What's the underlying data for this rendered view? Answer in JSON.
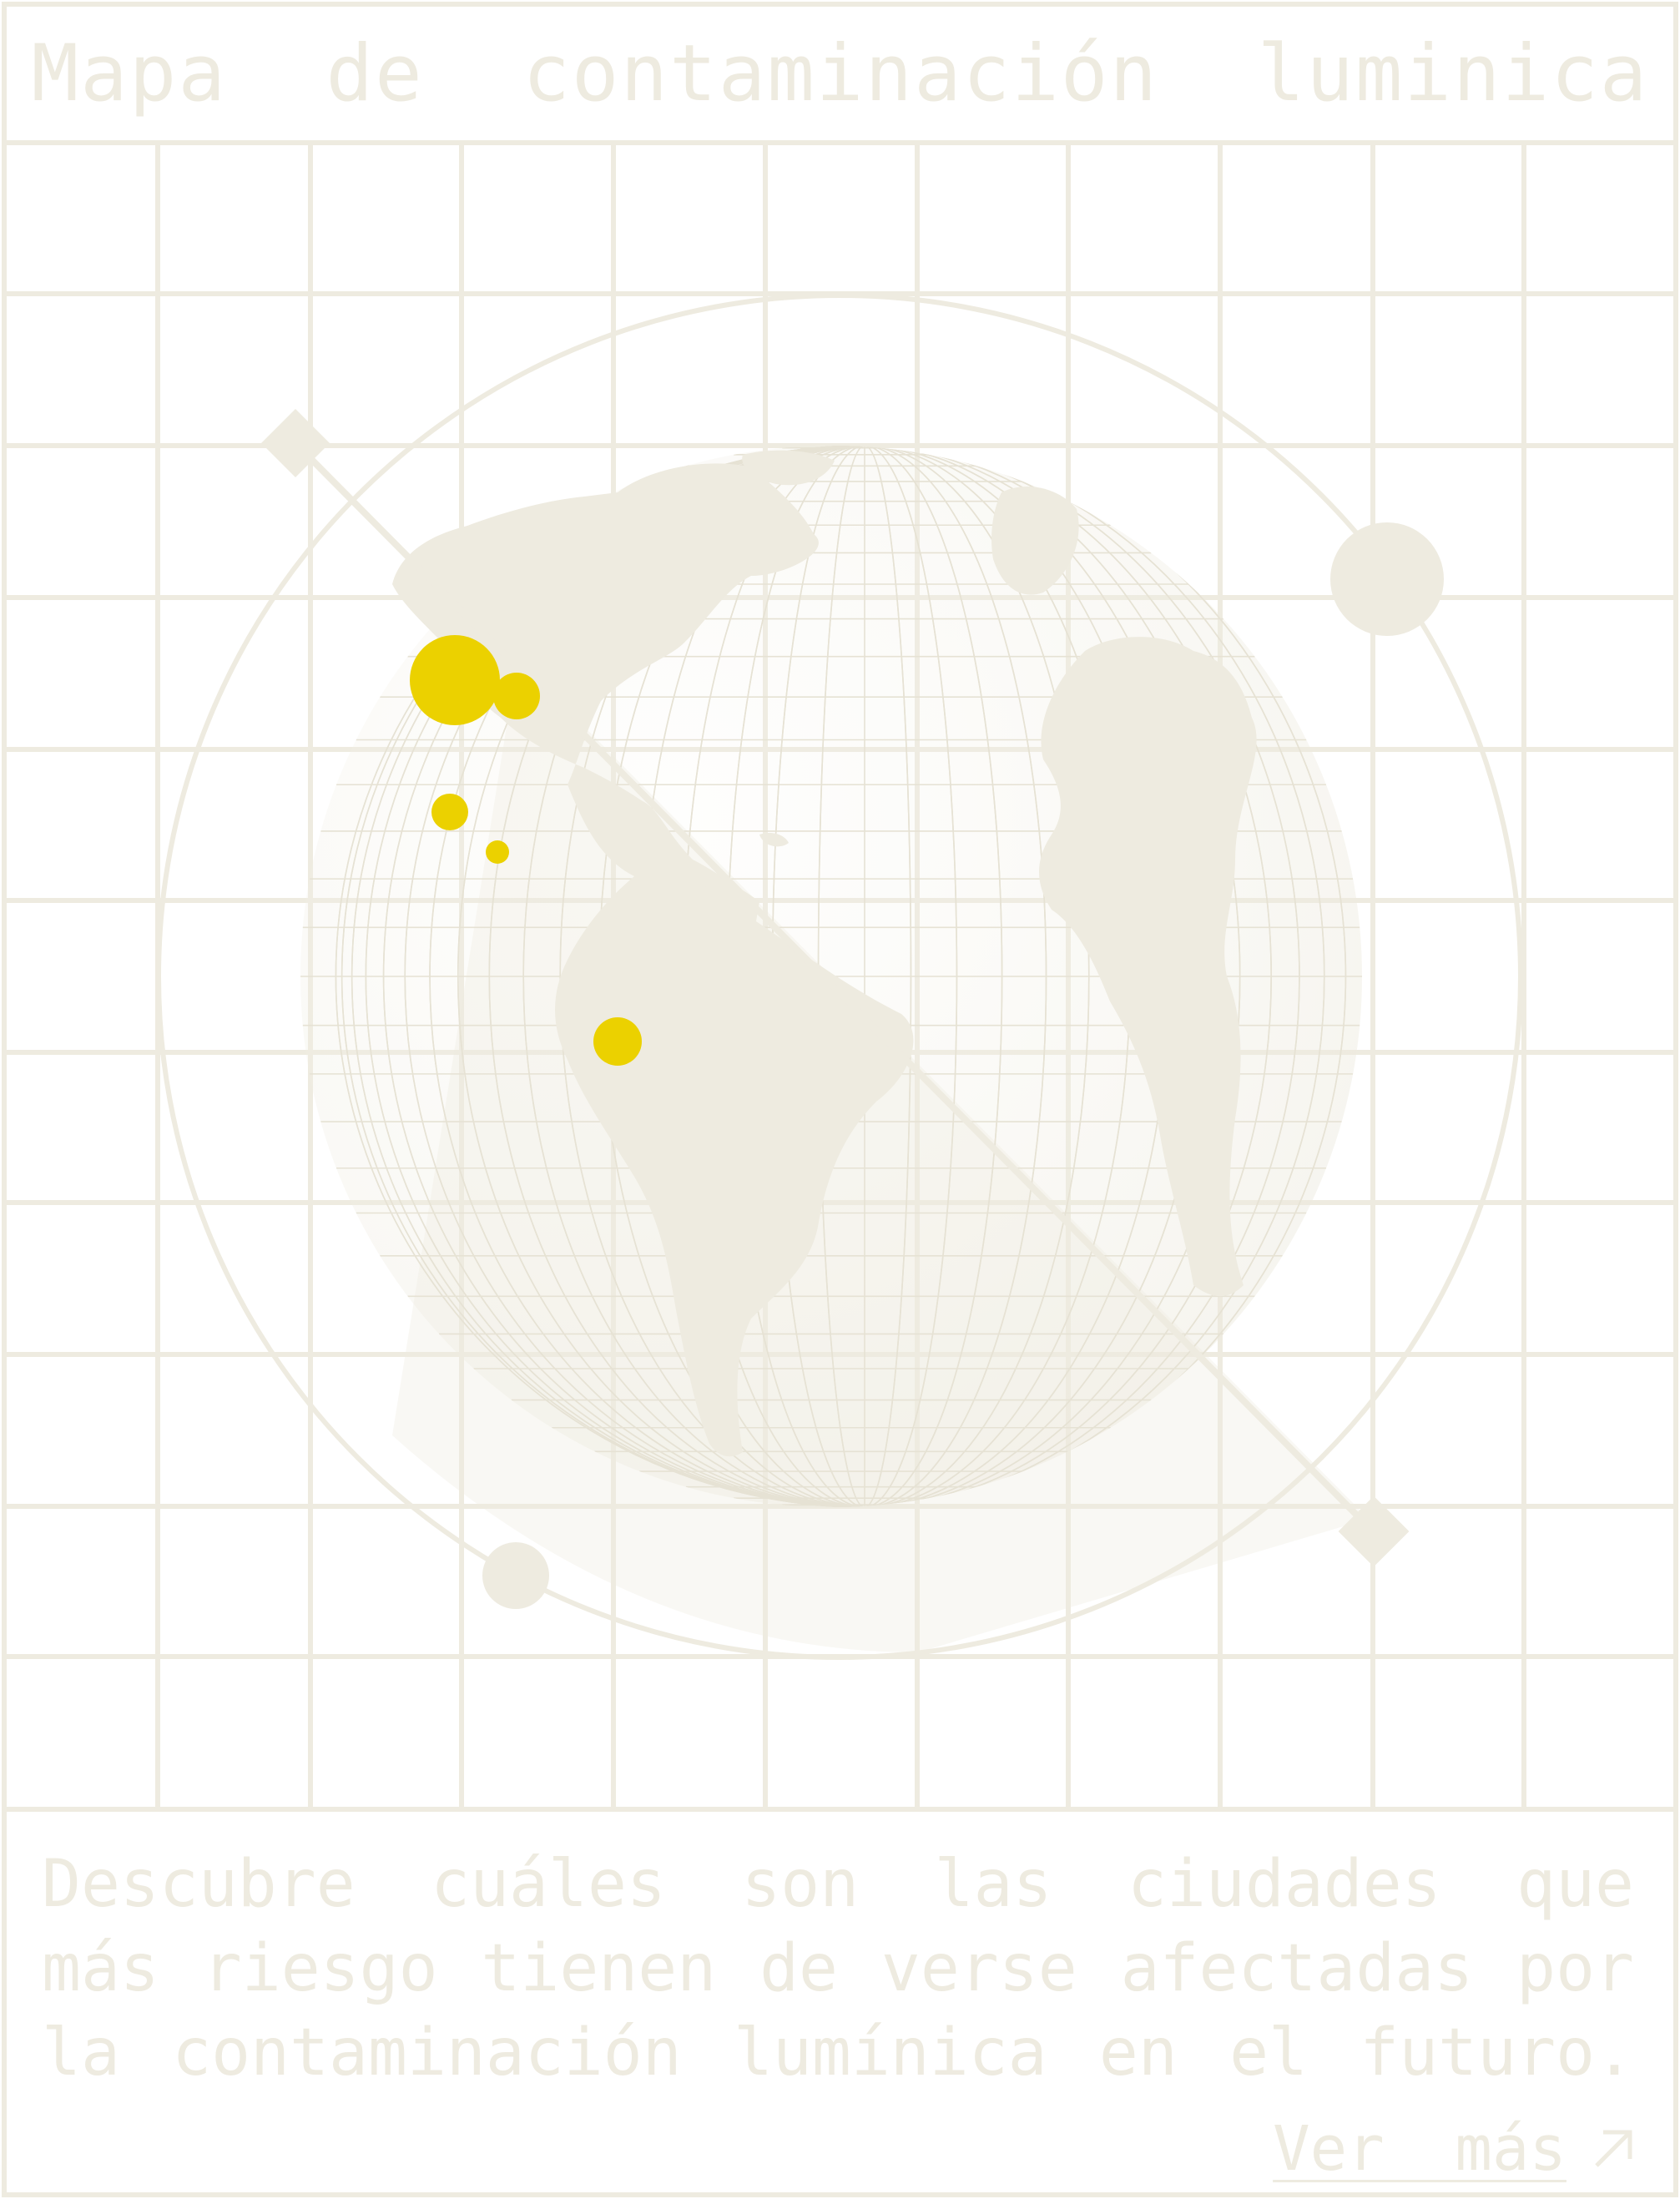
{
  "header": {
    "title": "Mapa de contaminación luminica"
  },
  "description": {
    "lines": [
      "Descubre cuáles son las ciudades que",
      "más riesgo tienen de verse afectadas por",
      "la contaminación lumínica en el futuro."
    ]
  },
  "link": {
    "label": "Ver más",
    "icon": "arrow-up-right-icon"
  },
  "colors": {
    "line": "#eeebe0",
    "land": "#eeebe0",
    "marker": "#ebd100",
    "background": "#ffffff"
  },
  "map": {
    "hotspots": [
      {
        "name": "north-america-west",
        "size": "large"
      },
      {
        "name": "north-america-east",
        "size": "medium"
      },
      {
        "name": "mexico",
        "size": "small"
      },
      {
        "name": "central-america",
        "size": "tiny"
      },
      {
        "name": "south-america-north",
        "size": "small"
      }
    ]
  }
}
